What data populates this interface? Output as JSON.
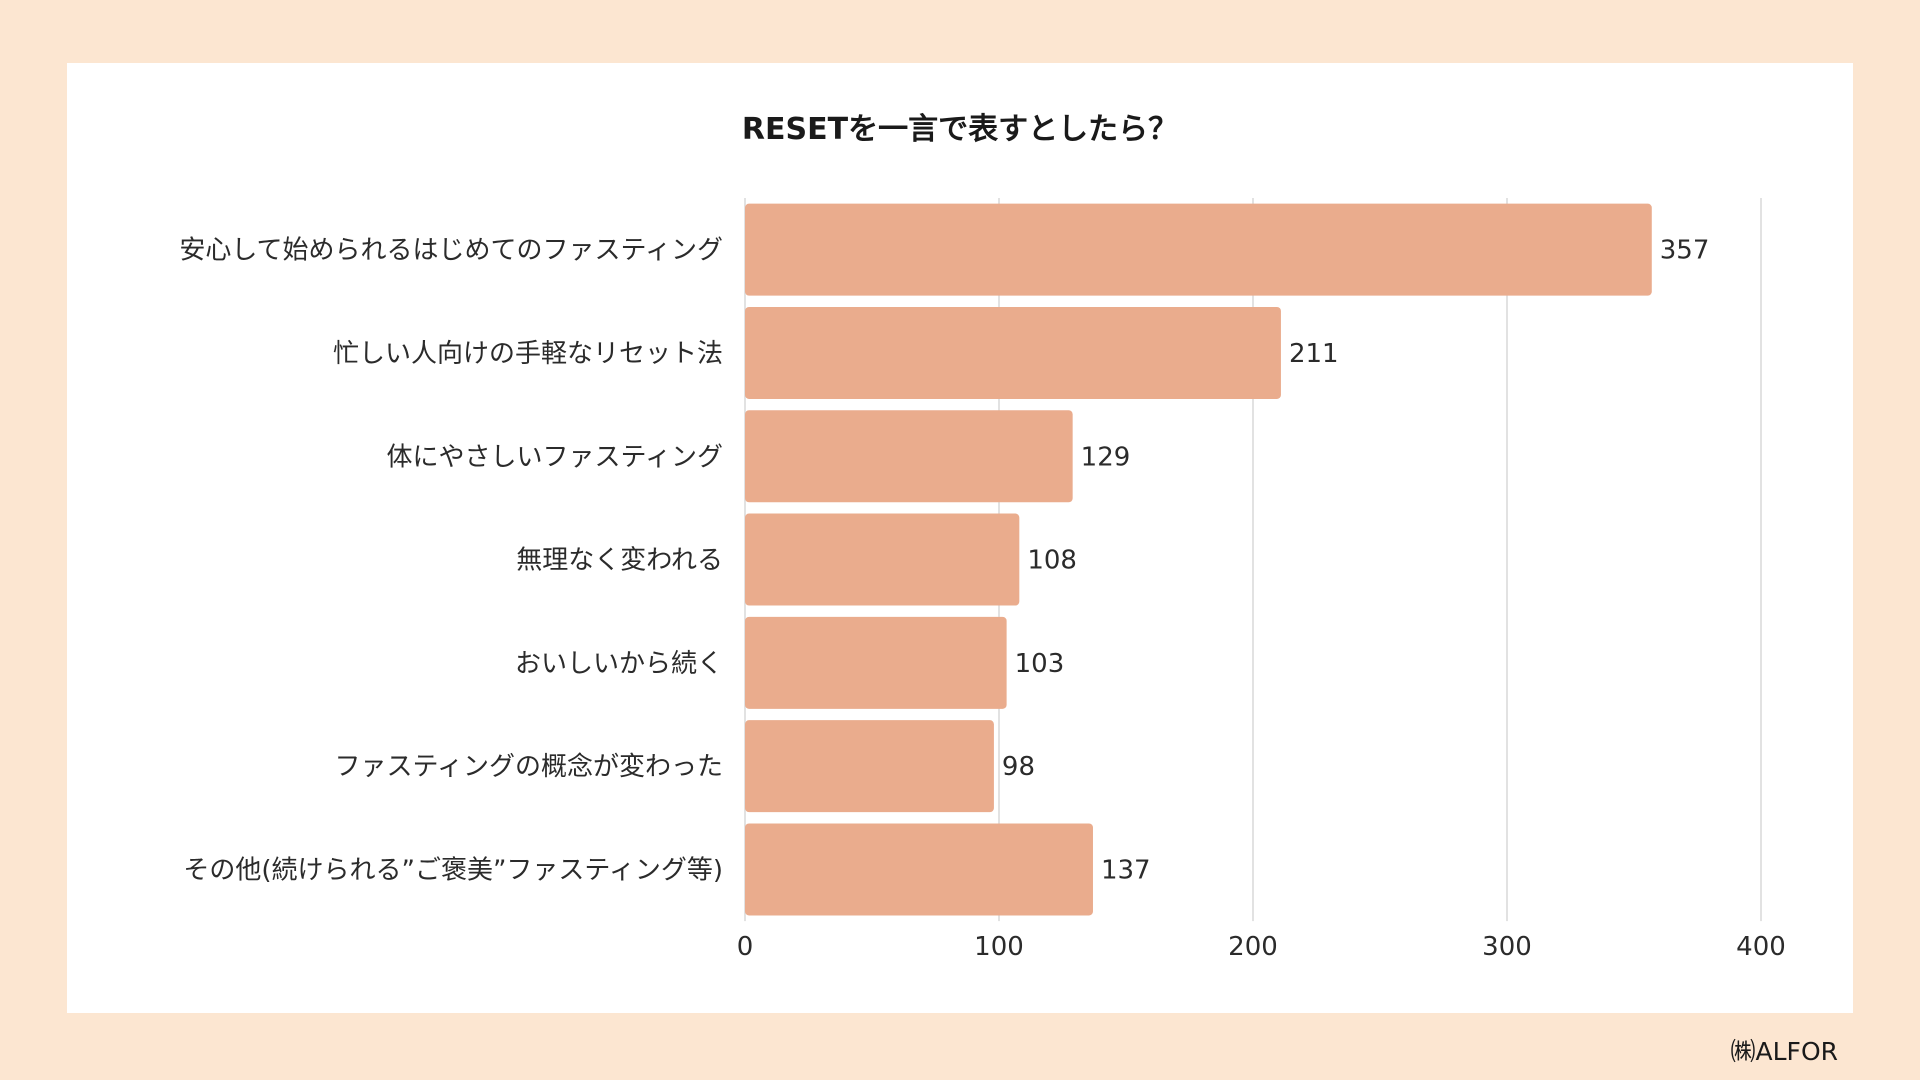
{
  "chart_data": {
    "type": "bar",
    "orientation": "horizontal",
    "title": "RESETを一言で表すとしたら？",
    "categories": [
      "安心して始められるはじめてのファスティング",
      "忙しい人向けの手軽なリセット法",
      "体にやさしいファスティング",
      "無理なく変われる",
      "おいしいから続く",
      "ファスティングの概念が変わった",
      "その他(続けられる”ご褒美”ファスティング等)"
    ],
    "values": [
      357,
      211,
      129,
      108,
      103,
      98,
      137
    ],
    "xlim": [
      0,
      400
    ],
    "ticks": [
      "0",
      "100",
      "200",
      "300",
      "400"
    ],
    "grid": true,
    "data_labels": true
  },
  "colors": {
    "bar": "#eaac8d",
    "background": "#fce6d1",
    "card": "#ffffff",
    "grid": "#d9d9d9"
  },
  "credit": "㈱ALFOR"
}
